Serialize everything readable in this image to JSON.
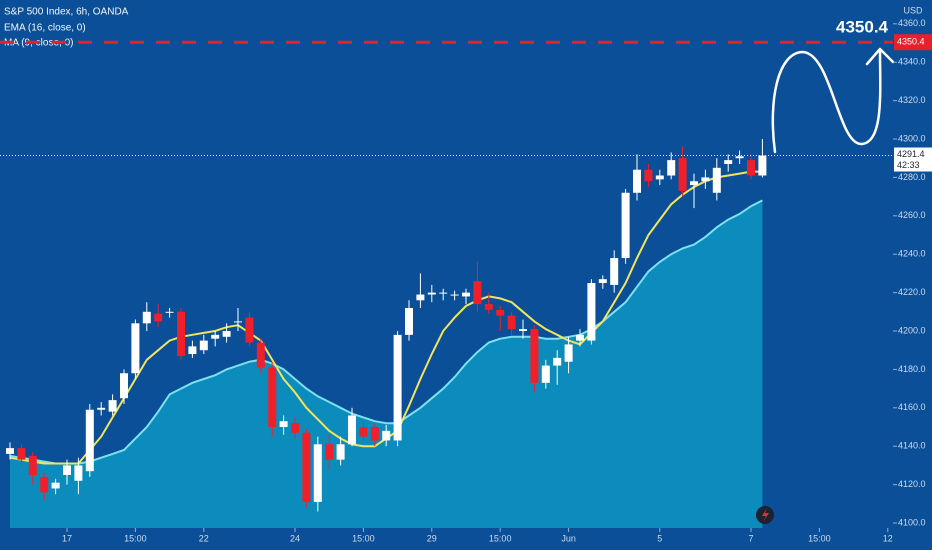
{
  "chart_data": {
    "type": "candlestick",
    "title": "S&P 500 Index, 6h, OANDA",
    "indicators": [
      "EMA (16, close, 0)",
      "MA (9, close, 0)"
    ],
    "currency": "USD",
    "countdown": "42:33",
    "target": 4350.4,
    "up_color": "#ffffff",
    "down_color": "#f0202a",
    "categories": [
      null,
      null,
      null,
      null,
      null,
      null,
      null,
      null,
      null,
      null,
      null,
      null,
      null,
      null,
      null,
      null,
      null,
      null,
      null,
      null,
      null,
      null,
      null,
      null,
      null,
      null,
      null,
      null,
      null,
      null,
      null,
      null,
      null,
      null,
      null,
      null,
      null,
      null,
      null,
      null,
      null,
      null,
      null,
      null,
      null,
      null,
      null,
      null,
      null,
      null,
      null,
      null,
      null,
      null,
      null,
      null,
      null,
      null,
      null,
      null,
      null,
      null,
      null,
      null,
      null,
      null,
      null
    ],
    "open": [
      4136,
      4139,
      4135,
      4124,
      4118,
      4125,
      4122,
      4127,
      4159,
      4158,
      4165,
      4178,
      4204,
      4209,
      4210,
      4210,
      4188,
      4190,
      4196,
      4197,
      4205,
      4207,
      4194,
      4181,
      4150,
      4152,
      4147,
      4111,
      4141,
      4133,
      4141,
      4150,
      4150,
      4143,
      4143,
      4198,
      4216,
      4219,
      4220,
      4219,
      4218,
      4226,
      4214,
      4211,
      4208,
      4200,
      4201,
      4173,
      4182,
      4184,
      4195,
      4195,
      4225,
      4224,
      4238,
      4272,
      4284,
      4279,
      4281,
      4290,
      4276,
      4278,
      4272,
      4287,
      4290,
      4289,
      4281
    ],
    "high": [
      4142,
      4141,
      4137,
      4126,
      4123,
      4133,
      4134,
      4162,
      4163,
      4167,
      4180,
      4206,
      4215,
      4214,
      4212,
      4212,
      4195,
      4198,
      4200,
      4204,
      4212,
      4210,
      4196,
      4184,
      4156,
      4155,
      4149,
      4145,
      4146,
      4145,
      4160,
      4153,
      4152,
      4151,
      4200,
      4216,
      4230,
      4224,
      4222,
      4221,
      4222,
      4236,
      4220,
      4213,
      4210,
      4206,
      4203,
      4185,
      4190,
      4197,
      4201,
      4227,
      4229,
      4242,
      4274,
      4292,
      4287,
      4284,
      4293,
      4296,
      4282,
      4284,
      4290,
      4292,
      4294,
      4292,
      4300
    ],
    "low": [
      4133,
      4130,
      4120,
      4112,
      4115,
      4120,
      4115,
      4124,
      4156,
      4156,
      4162,
      4175,
      4200,
      4202,
      4207,
      4185,
      4186,
      4188,
      4192,
      4194,
      4200,
      4192,
      4178,
      4145,
      4146,
      4144,
      4108,
      4106,
      4128,
      4130,
      4140,
      4143,
      4140,
      4140,
      4140,
      4195,
      4212,
      4215,
      4216,
      4216,
      4214,
      4210,
      4209,
      4200,
      4198,
      4196,
      4168,
      4170,
      4172,
      4178,
      4192,
      4193,
      4222,
      4220,
      4235,
      4268,
      4275,
      4276,
      4279,
      4270,
      4264,
      4274,
      4268,
      4283,
      4287,
      4279,
      4280
    ],
    "close": [
      4139,
      4133,
      4125,
      4116,
      4121,
      4130,
      4130,
      4159,
      4160,
      4164,
      4178,
      4204,
      4210,
      4205,
      4210,
      4187,
      4192,
      4195,
      4198,
      4200,
      4205,
      4194,
      4181,
      4150,
      4153,
      4147,
      4111,
      4141,
      4133,
      4141,
      4156,
      4145,
      4143,
      4148,
      4198,
      4212,
      4219,
      4220,
      4220,
      4219,
      4220,
      4214,
      4211,
      4208,
      4201,
      4201,
      4173,
      4182,
      4186,
      4193,
      4198,
      4225,
      4227,
      4238,
      4272,
      4284,
      4278,
      4281,
      4289,
      4273,
      4278,
      4280,
      4285,
      4289,
      4291,
      4281,
      4291.4
    ],
    "series": [
      {
        "name": "EMA (16, close, 0)",
        "color": "#7fe0ee",
        "fill": "#0b8cbd",
        "values": [
          4135,
          4134,
          4133,
          4132,
          4131,
          4131,
          4131,
          4132,
          4134,
          4136,
          4138,
          4144,
          4150,
          4158,
          4167,
          4170,
          4173,
          4175,
          4177,
          4180,
          4182,
          4184,
          4185,
          4183,
          4180,
          4175,
          4170,
          4166,
          4163,
          4160,
          4157,
          4155,
          4153,
          4152,
          4152,
          4156,
          4160,
          4165,
          4170,
          4176,
          4183,
          4189,
          4194,
          4196,
          4197,
          4197,
          4197,
          4196,
          4196,
          4197,
          4198,
          4201,
          4205,
          4210,
          4215,
          4223,
          4231,
          4236,
          4240,
          4243,
          4245,
          4249,
          4254,
          4258,
          4261,
          4265,
          4268
        ]
      },
      {
        "name": "MA (9, close, 0)",
        "color": "#f3e45a",
        "values": [
          4134,
          4133,
          4132,
          4131,
          4131,
          4131,
          4131,
          4138,
          4145,
          4155,
          4165,
          4175,
          4185,
          4190,
          4195,
          4197,
          4198,
          4199,
          4200,
          4202,
          4203,
          4199,
          4195,
          4185,
          4175,
          4168,
          4160,
          4154,
          4148,
          4144,
          4141,
          4140,
          4140,
          4144,
          4148,
          4161,
          4175,
          4188,
          4200,
          4207,
          4213,
          4216,
          4218,
          4217,
          4215,
          4210,
          4205,
          4201,
          4198,
          4195,
          4193,
          4199,
          4205,
          4215,
          4225,
          4238,
          4250,
          4258,
          4266,
          4271,
          4275,
          4278,
          4280,
          4281,
          4282,
          4283,
          4283
        ]
      }
    ],
    "ylim": [
      4097.4,
      4372.4
    ],
    "yticks": [
      {
        "value": 4100,
        "label": "4100.0"
      },
      {
        "value": 4120,
        "label": "4120.0"
      },
      {
        "value": 4140,
        "label": "4140.0"
      },
      {
        "value": 4160,
        "label": "4160.0"
      },
      {
        "value": 4180,
        "label": "4180.0"
      },
      {
        "value": 4200,
        "label": "4200.0"
      },
      {
        "value": 4220,
        "label": "4220.0"
      },
      {
        "value": 4240,
        "label": "4240.0"
      },
      {
        "value": 4260,
        "label": "4260.0"
      },
      {
        "value": 4280,
        "label": "4280.0"
      },
      {
        "value": 4300,
        "label": "4300.0"
      },
      {
        "value": 4320,
        "label": "4320.0"
      },
      {
        "value": 4340,
        "label": "4340.0"
      },
      {
        "value": 4360,
        "label": "4360.0"
      }
    ],
    "xticks": [
      {
        "value": 5,
        "label": "17"
      },
      {
        "value": 11,
        "label": "15:00"
      },
      {
        "value": 17,
        "label": "22"
      },
      {
        "value": 25,
        "label": "24"
      },
      {
        "value": 31,
        "label": "15:00"
      },
      {
        "value": 37,
        "label": "29"
      },
      {
        "value": 43,
        "label": "15:00"
      },
      {
        "value": 49,
        "label": "Jun"
      },
      {
        "value": 57,
        "label": "5"
      },
      {
        "value": 65,
        "label": "7"
      },
      {
        "value": 71,
        "label": "15:00"
      },
      {
        "value": 77,
        "label": "12"
      }
    ]
  }
}
